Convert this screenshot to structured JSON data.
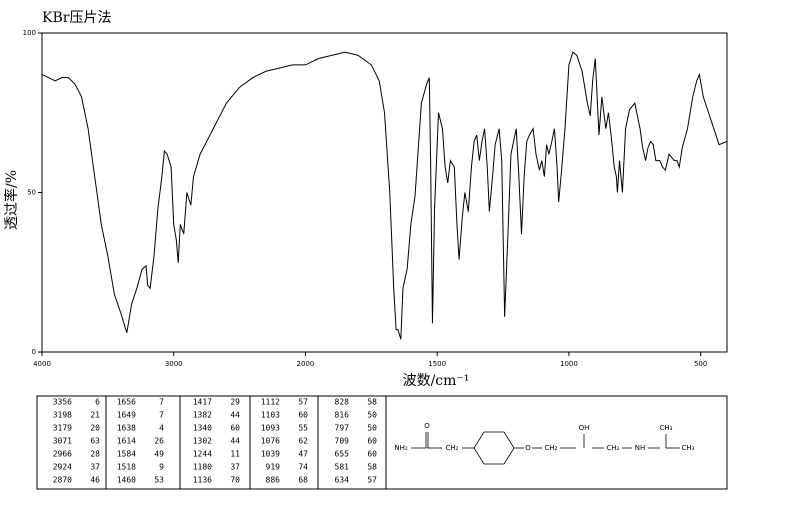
{
  "chart_data": {
    "type": "line",
    "title": "KBr压片法",
    "xlabel": "波数/cm⁻¹",
    "ylabel": "透过率/%",
    "xlim": [
      4000,
      400
    ],
    "xticks": [
      4000,
      3000,
      2000,
      1500,
      1000,
      500
    ],
    "xscale_break": 2000,
    "xscale_break_factor": 2,
    "ylim": [
      0,
      100
    ],
    "yticks": [
      0,
      50,
      100
    ],
    "color": "#000000",
    "x": [
      4000,
      3950,
      3900,
      3850,
      3800,
      3750,
      3700,
      3650,
      3600,
      3550,
      3500,
      3450,
      3400,
      3356,
      3320,
      3280,
      3240,
      3210,
      3198,
      3179,
      3150,
      3120,
      3090,
      3071,
      3050,
      3020,
      3000,
      2980,
      2966,
      2950,
      2924,
      2900,
      2870,
      2850,
      2800,
      2700,
      2600,
      2500,
      2400,
      2300,
      2200,
      2100,
      2000,
      1950,
      1900,
      1850,
      1800,
      1750,
      1720,
      1700,
      1680,
      1665,
      1656,
      1649,
      1638,
      1630,
      1614,
      1600,
      1584,
      1575,
      1560,
      1540,
      1530,
      1525,
      1518,
      1510,
      1495,
      1480,
      1470,
      1460,
      1450,
      1435,
      1425,
      1417,
      1405,
      1395,
      1382,
      1370,
      1360,
      1350,
      1340,
      1330,
      1320,
      1310,
      1302,
      1290,
      1280,
      1265,
      1255,
      1244,
      1230,
      1220,
      1200,
      1190,
      1180,
      1170,
      1160,
      1150,
      1136,
      1125,
      1112,
      1103,
      1093,
      1085,
      1076,
      1065,
      1055,
      1045,
      1039,
      1030,
      1015,
      1000,
      985,
      970,
      950,
      930,
      919,
      910,
      900,
      886,
      875,
      860,
      850,
      840,
      828,
      820,
      816,
      808,
      797,
      785,
      770,
      750,
      730,
      720,
      709,
      700,
      690,
      680,
      670,
      655,
      645,
      634,
      620,
      600,
      590,
      581,
      570,
      550,
      530,
      515,
      505,
      490,
      470,
      450,
      430,
      400
    ],
    "values": [
      87,
      86,
      85,
      86,
      86,
      84,
      80,
      70,
      55,
      40,
      30,
      18,
      12,
      6,
      15,
      20,
      26,
      27,
      21,
      20,
      30,
      45,
      55,
      63,
      62,
      58,
      40,
      35,
      28,
      40,
      37,
      50,
      46,
      55,
      62,
      70,
      78,
      83,
      86,
      88,
      89,
      90,
      90,
      92,
      93,
      94,
      93,
      90,
      85,
      75,
      50,
      20,
      7,
      7,
      4,
      20,
      26,
      40,
      49,
      60,
      78,
      84,
      86,
      60,
      9,
      45,
      75,
      70,
      58,
      53,
      60,
      58,
      40,
      29,
      42,
      50,
      44,
      58,
      66,
      68,
      60,
      66,
      70,
      58,
      44,
      55,
      65,
      70,
      60,
      11,
      40,
      62,
      70,
      55,
      37,
      55,
      66,
      68,
      70,
      62,
      57,
      60,
      55,
      65,
      62,
      66,
      70,
      58,
      47,
      55,
      70,
      90,
      94,
      93,
      88,
      78,
      74,
      85,
      92,
      68,
      80,
      70,
      75,
      68,
      58,
      55,
      50,
      60,
      50,
      70,
      76,
      78,
      70,
      64,
      60,
      64,
      66,
      65,
      60,
      60,
      58,
      57,
      62,
      60,
      60,
      58,
      64,
      70,
      80,
      85,
      87,
      80,
      75,
      70,
      65,
      66
    ]
  },
  "peak_table": {
    "columns": [
      [
        [
          3356,
          6
        ],
        [
          3198,
          21
        ],
        [
          3179,
          20
        ],
        [
          3071,
          63
        ],
        [
          2966,
          28
        ],
        [
          2924,
          37
        ],
        [
          2870,
          46
        ]
      ],
      [
        [
          1656,
          7
        ],
        [
          1649,
          7
        ],
        [
          1638,
          4
        ],
        [
          1614,
          26
        ],
        [
          1584,
          49
        ],
        [
          1518,
          9
        ],
        [
          1460,
          53
        ]
      ],
      [
        [
          1417,
          29
        ],
        [
          1382,
          44
        ],
        [
          1340,
          60
        ],
        [
          1302,
          44
        ],
        [
          1244,
          11
        ],
        [
          1180,
          37
        ],
        [
          1136,
          70
        ]
      ],
      [
        [
          1112,
          57
        ],
        [
          1103,
          60
        ],
        [
          1093,
          55
        ],
        [
          1076,
          62
        ],
        [
          1039,
          47
        ],
        [
          919,
          74
        ],
        [
          886,
          68
        ]
      ],
      [
        [
          828,
          58
        ],
        [
          816,
          50
        ],
        [
          797,
          50
        ],
        [
          709,
          60
        ],
        [
          655,
          60
        ],
        [
          581,
          58
        ],
        [
          634,
          57
        ]
      ]
    ]
  },
  "structure": {
    "labels": [
      "NH₂",
      "O",
      "CH₂",
      "O",
      "CH₂",
      "OH",
      "CH₂",
      "NH",
      "CH₃",
      "CH₃"
    ]
  }
}
